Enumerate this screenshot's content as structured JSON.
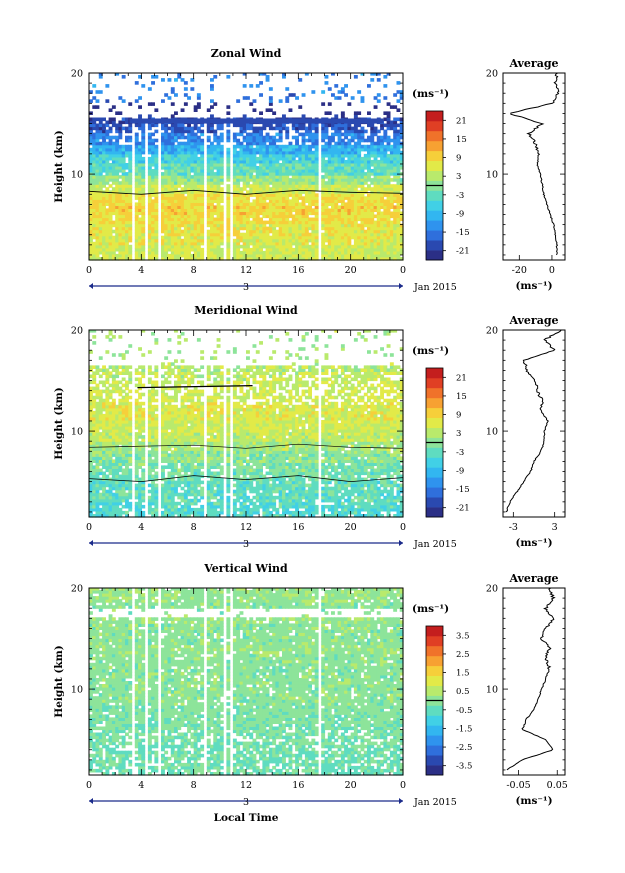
{
  "panels": [
    {
      "id": "zonal",
      "title": "Zonal Wind",
      "ylabel": "Height (km)",
      "y_ticks": [
        "20",
        "10"
      ],
      "x_ticks": [
        "0",
        "4",
        "8",
        "12",
        "16",
        "20",
        "0"
      ],
      "date_day": "3",
      "date_label": "Jan 2015",
      "colorbar_unit": "(ms⁻¹)",
      "colorbar_ticks": [
        "21",
        "15",
        "9",
        "3",
        "-3",
        "-9",
        "-15",
        "-21"
      ],
      "avg_title": "Average",
      "avg_y_ticks": [
        "20",
        "10"
      ],
      "avg_x_ticks": [
        "-20",
        "0"
      ],
      "avg_unit": "(ms⁻¹)"
    },
    {
      "id": "meridional",
      "title": "Meridional Wind",
      "ylabel": "Height (km)",
      "y_ticks": [
        "20",
        "10"
      ],
      "x_ticks": [
        "0",
        "4",
        "8",
        "12",
        "16",
        "20",
        "0"
      ],
      "date_day": "3",
      "date_label": "Jan 2015",
      "colorbar_unit": "(ms⁻¹)",
      "colorbar_ticks": [
        "21",
        "15",
        "9",
        "3",
        "-3",
        "-9",
        "-15",
        "-21"
      ],
      "avg_title": "Average",
      "avg_y_ticks": [
        "20",
        "10"
      ],
      "avg_x_ticks": [
        "-3",
        "3"
      ],
      "avg_unit": "(ms⁻¹)"
    },
    {
      "id": "vertical",
      "title": "Vertical Wind",
      "ylabel": "Height (km)",
      "y_ticks": [
        "20",
        "10"
      ],
      "x_ticks": [
        "0",
        "4",
        "8",
        "12",
        "16",
        "20",
        "0"
      ],
      "date_day": "3",
      "date_label": "Jan 2015",
      "colorbar_unit": "(ms⁻¹)",
      "colorbar_ticks": [
        "3.5",
        "2.5",
        "1.5",
        "0.5",
        "-0.5",
        "-1.5",
        "-2.5",
        "-3.5"
      ],
      "avg_title": "Average",
      "avg_y_ticks": [
        "20",
        "10"
      ],
      "avg_x_ticks": [
        "-0.05",
        "0.05"
      ],
      "avg_unit": "(ms⁻¹)"
    }
  ],
  "xlabel": "Local Time",
  "colors": {
    "scale": [
      "#2b2f86",
      "#2a49b0",
      "#2f6fdc",
      "#2f93ee",
      "#32b6f0",
      "#41d0e6",
      "#5fdcc0",
      "#8de49a",
      "#b9ea6c",
      "#e2ea48",
      "#f6cf3a",
      "#f7a132",
      "#f0722a",
      "#e03f24",
      "#c41e1e"
    ],
    "zonal_contour": "#000000"
  },
  "chart_data": [
    {
      "type": "heatmap",
      "title": "Zonal Wind",
      "xlabel": "Local Time",
      "ylabel": "Height (km)",
      "xlim": [
        0,
        24
      ],
      "ylim": [
        1.5,
        20
      ],
      "colorbar": {
        "min": -24,
        "max": 24,
        "unit": "ms-1"
      },
      "height_km": [
        2,
        3,
        4,
        5,
        6,
        7,
        8,
        9,
        10,
        11,
        12,
        13,
        14,
        15,
        16,
        17,
        18,
        19
      ],
      "mean_value": [
        5,
        6,
        7,
        8,
        9,
        8,
        5,
        1,
        -3,
        -6,
        -10,
        -14,
        -18,
        -20,
        -24,
        -15,
        null,
        null
      ],
      "missing_columns_local_time": [
        3.3,
        4.4,
        5.3,
        8.9,
        10.3,
        10.9,
        17.7
      ],
      "profile": {
        "title": "Average",
        "xlim": [
          -30,
          8
        ],
        "height_km": [
          2,
          3,
          4,
          5,
          6,
          7,
          8,
          9,
          10,
          11,
          12,
          13,
          14,
          15,
          16,
          17,
          18,
          19,
          20
        ],
        "value": [
          3,
          3,
          2,
          1,
          -1,
          -3,
          -5,
          -6,
          -7,
          -9,
          -8,
          -10,
          -14,
          -6,
          -26,
          0,
          4,
          2,
          3
        ]
      }
    },
    {
      "type": "heatmap",
      "title": "Meridional Wind",
      "xlabel": "Local Time",
      "ylabel": "Height (km)",
      "xlim": [
        0,
        24
      ],
      "ylim": [
        1.5,
        20
      ],
      "colorbar": {
        "min": -24,
        "max": 24,
        "unit": "ms-1"
      },
      "height_km": [
        2,
        3,
        4,
        5,
        6,
        7,
        8,
        9,
        10,
        11,
        12,
        13,
        14,
        15,
        16,
        17,
        18,
        19
      ],
      "mean_value": [
        -4,
        -3,
        -3,
        -2,
        -1,
        0,
        2,
        4,
        5,
        6,
        6,
        5,
        5,
        4,
        3,
        2,
        null,
        null
      ],
      "missing_columns_local_time": [
        3.3,
        4.4,
        5.3,
        8.9,
        10.3,
        10.9,
        17.7
      ],
      "profile": {
        "title": "Average",
        "xlim": [
          -4.5,
          4.5
        ],
        "height_km": [
          2,
          3,
          4,
          5,
          6,
          7,
          8,
          9,
          10,
          11,
          12,
          13,
          14,
          15,
          16,
          17,
          18,
          19,
          20
        ],
        "value": [
          -4,
          -3.5,
          -2.5,
          -1.5,
          -0.5,
          0,
          1,
          1.5,
          1.5,
          2,
          1,
          1.2,
          0.5,
          0.2,
          -1,
          -1.5,
          3,
          1.5,
          4
        ]
      }
    },
    {
      "type": "heatmap",
      "title": "Vertical Wind",
      "xlabel": "Local Time",
      "ylabel": "Height (km)",
      "xlim": [
        0,
        24
      ],
      "ylim": [
        1.5,
        20
      ],
      "colorbar": {
        "min": -4,
        "max": 4,
        "unit": "ms-1"
      },
      "height_km": [
        2,
        3,
        4,
        5,
        6,
        7,
        8,
        9,
        10,
        11,
        12,
        13,
        14,
        15,
        16,
        17,
        18,
        19,
        20
      ],
      "mean_value": [
        -0.3,
        -0.3,
        -0.3,
        -0.2,
        -0.2,
        -0.1,
        -0.1,
        0,
        0,
        0,
        0,
        0,
        0.1,
        0,
        0,
        0.1,
        0,
        0.1,
        0.1
      ],
      "missing_columns_local_time": [
        3.3,
        4.4,
        5.3,
        8.9,
        10.3,
        10.9,
        17.7
      ],
      "profile": {
        "title": "Average",
        "xlim": [
          -0.09,
          0.07
        ],
        "height_km": [
          2,
          3,
          4,
          5,
          6,
          7,
          8,
          9,
          10,
          11,
          12,
          13,
          14,
          15,
          16,
          17,
          18,
          19,
          20
        ],
        "value": [
          -0.08,
          -0.04,
          0.04,
          0.02,
          -0.04,
          -0.03,
          -0.01,
          0,
          0.01,
          0.02,
          0.03,
          0.02,
          0.03,
          0.01,
          0.02,
          0.04,
          0.02,
          0.04,
          0.03
        ]
      }
    }
  ]
}
